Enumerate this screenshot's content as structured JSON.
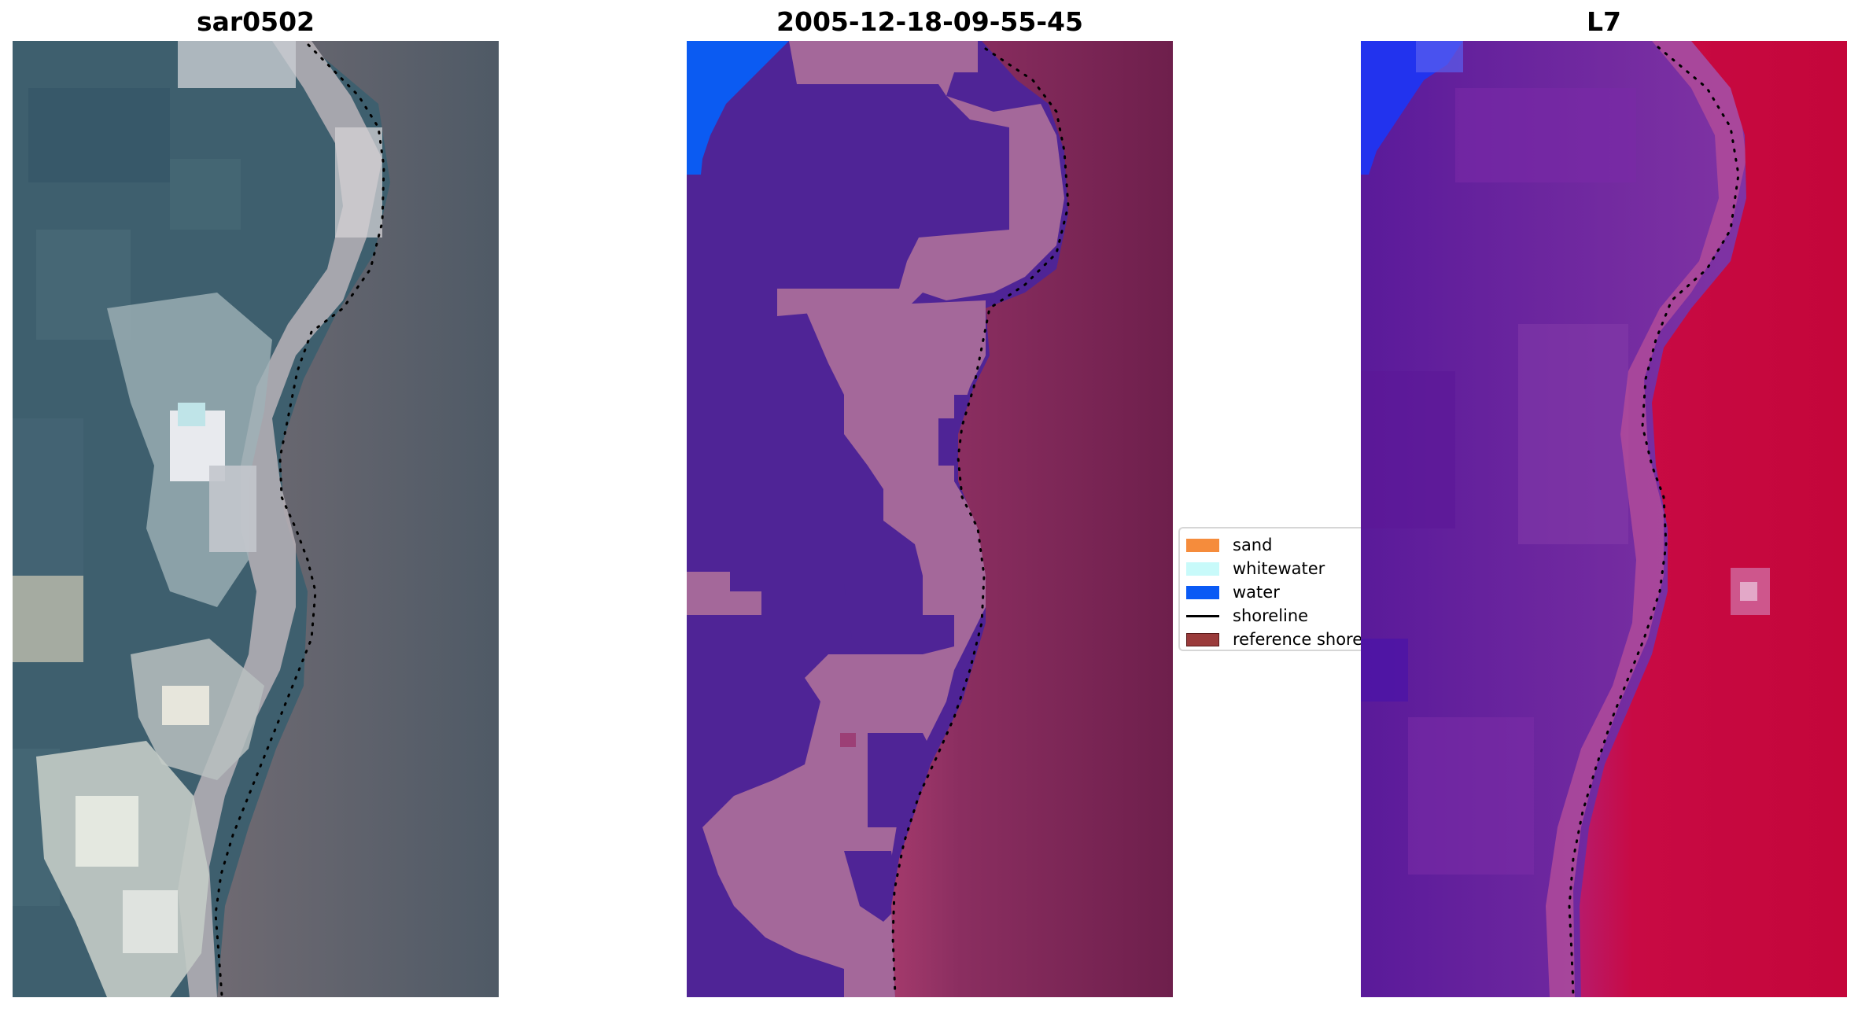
{
  "panels": [
    {
      "title": "sar0502"
    },
    {
      "title": "2005-12-18-09-55-45"
    },
    {
      "title": "L7"
    }
  ],
  "legend": {
    "items": [
      {
        "label": "sand",
        "color": "#f58c3c",
        "kind": "patch"
      },
      {
        "label": "whitewater",
        "color": "#c8fafa",
        "kind": "patch"
      },
      {
        "label": "water",
        "color": "#0a5af5",
        "kind": "patch"
      },
      {
        "label": "shoreline",
        "color": "#000000",
        "kind": "line"
      },
      {
        "label": "reference shoreline",
        "color": "#9a3b3b",
        "kind": "patch"
      }
    ]
  },
  "colors": {
    "rgb_water": "#3e5f6e",
    "rgb_whitewater": "#d6dde0",
    "rgb_land": "#5d5a60",
    "class_water": "#4f2496",
    "class_whitewater_zone": "#a4689a",
    "class_land": "#7a2556",
    "class_sea_blue": "#0b5bf2",
    "falsecolor_water": "#6a1e98",
    "falsecolor_land": "#c4063a",
    "falsecolor_blue": "#2233ee",
    "shoreline_dots": "#000000"
  }
}
